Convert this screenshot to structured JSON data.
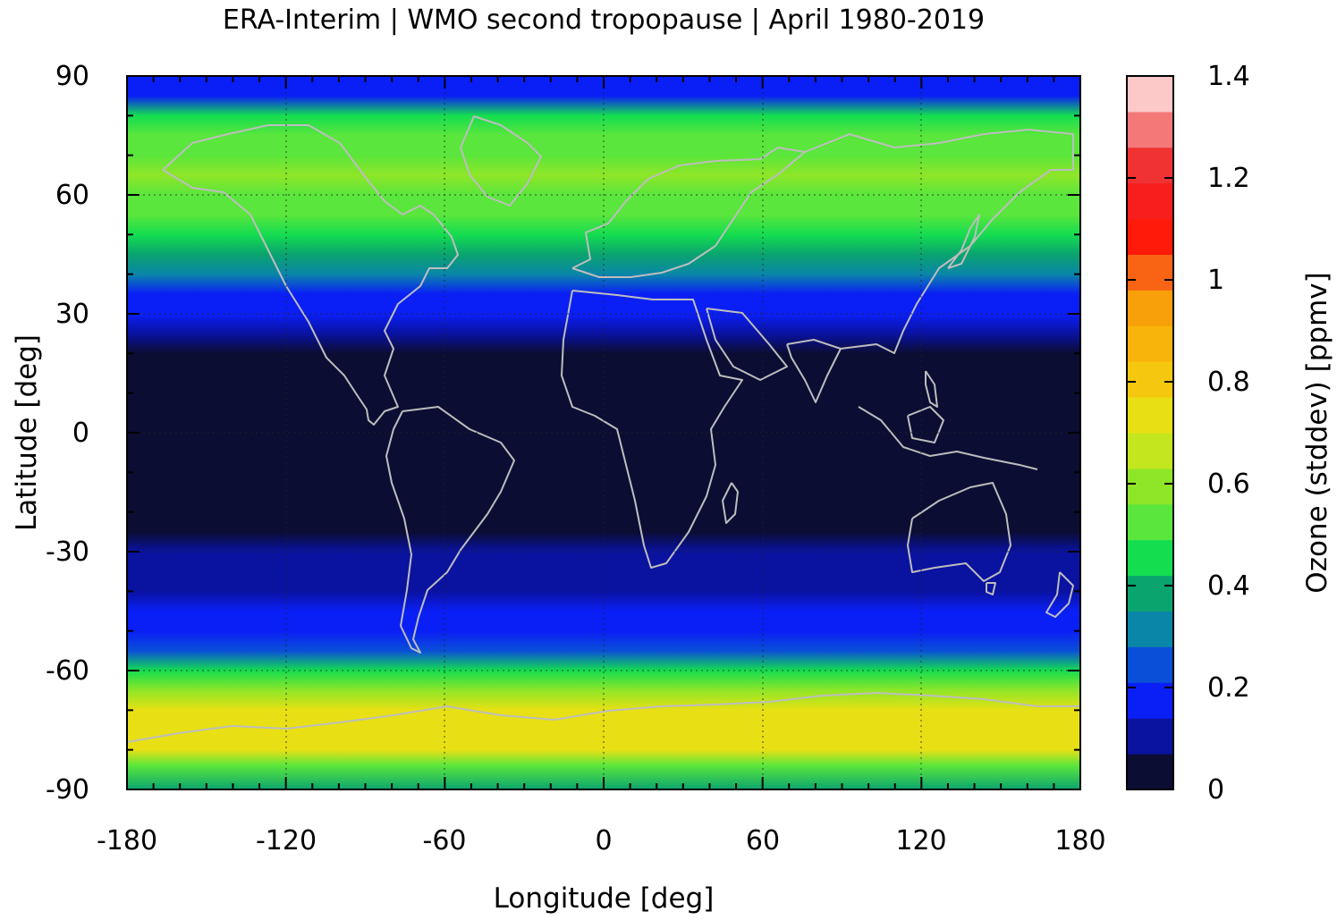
{
  "chart_data": {
    "type": "heatmap",
    "title": "ERA-Interim | WMO second tropopause | April 1980-2019",
    "xlabel": "Longitude [deg]",
    "ylabel": "Latitude [deg]",
    "colorbar_label": "Ozone (stddev) [ppmv]",
    "xlim": [
      -180,
      180
    ],
    "ylim": [
      -90,
      90
    ],
    "xticks": [
      -180,
      -120,
      -60,
      0,
      60,
      120,
      180
    ],
    "xtick_labels": [
      "-180",
      "-120",
      "-60",
      "0",
      "60",
      "120",
      "180"
    ],
    "yticks": [
      -90,
      -60,
      -30,
      0,
      30,
      60,
      90
    ],
    "ytick_labels": [
      "-90",
      "-60",
      "-30",
      "0",
      "30",
      "60",
      "90"
    ],
    "grid": true,
    "colorbar": {
      "range": [
        0,
        1.4
      ],
      "ticks": [
        0,
        0.2,
        0.4,
        0.6,
        0.8,
        1,
        1.2,
        1.4
      ],
      "tick_labels": [
        "0",
        "0.2",
        "0.4",
        "0.6",
        "0.8",
        "1",
        "1.2",
        "1.4"
      ],
      "colors": [
        "#0b0d33",
        "#0a12a0",
        "#0a1ff5",
        "#0a4fd8",
        "#0a86a8",
        "#0aa46e",
        "#14dd50",
        "#5ae63c",
        "#8fe628",
        "#c4e61e",
        "#e8e014",
        "#f5c80f",
        "#f8b40a",
        "#f8a00a",
        "#f86414",
        "#ff1a0a",
        "#f81e1e",
        "#f03232",
        "#f47878",
        "#fcc8c8"
      ]
    },
    "latitude_profile": {
      "lat": [
        -90,
        -84,
        -80,
        -75,
        -70,
        -65,
        -60,
        -55,
        -50,
        -45,
        -40,
        -35,
        -30,
        -25,
        -20,
        -10,
        0,
        10,
        20,
        25,
        30,
        35,
        40,
        45,
        50,
        55,
        60,
        65,
        70,
        75,
        80,
        85,
        90
      ],
      "ozone_stddev": [
        0.4,
        0.55,
        0.72,
        0.76,
        0.72,
        0.6,
        0.42,
        0.25,
        0.2,
        0.16,
        0.12,
        0.1,
        0.08,
        0.03,
        0.02,
        0.01,
        0.01,
        0.01,
        0.03,
        0.12,
        0.18,
        0.2,
        0.28,
        0.36,
        0.48,
        0.55,
        0.55,
        0.6,
        0.55,
        0.5,
        0.45,
        0.2,
        0.15
      ]
    }
  }
}
